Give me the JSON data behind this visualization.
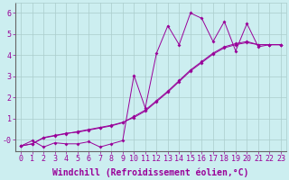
{
  "xlabel": "Windchill (Refroidissement éolien,°C)",
  "background_color": "#cceef0",
  "line_color": "#990099",
  "grid_color": "#aacccc",
  "xlim": [
    -0.5,
    23.5
  ],
  "ylim": [
    -0.55,
    6.5
  ],
  "yticks": [
    0,
    1,
    2,
    3,
    4,
    5,
    6
  ],
  "ytick_labels": [
    "-0",
    "1",
    "2",
    "3",
    "4",
    "5",
    "6"
  ],
  "xticks": [
    0,
    1,
    2,
    3,
    4,
    5,
    6,
    7,
    8,
    9,
    10,
    11,
    12,
    13,
    14,
    15,
    16,
    17,
    18,
    19,
    20,
    21,
    22,
    23
  ],
  "series1_x": [
    0,
    1,
    2,
    3,
    4,
    5,
    6,
    7,
    8,
    9,
    10,
    11,
    12,
    13,
    14,
    15,
    16,
    17,
    18,
    19,
    20,
    21,
    22,
    23
  ],
  "series1_y": [
    -0.3,
    -0.2,
    0.1,
    0.2,
    0.3,
    0.35,
    0.45,
    0.55,
    0.65,
    0.8,
    1.1,
    1.4,
    1.85,
    2.3,
    2.8,
    3.3,
    3.7,
    4.1,
    4.4,
    4.55,
    4.65,
    4.5,
    4.5,
    4.5
  ],
  "series2_x": [
    0,
    1,
    2,
    3,
    4,
    5,
    6,
    7,
    8,
    9,
    10,
    11,
    12,
    13,
    14,
    15,
    16,
    17,
    18,
    19,
    20,
    21,
    22,
    23
  ],
  "series2_y": [
    -0.3,
    -0.2,
    0.08,
    0.18,
    0.28,
    0.38,
    0.48,
    0.58,
    0.68,
    0.82,
    1.05,
    1.35,
    1.8,
    2.25,
    2.75,
    3.25,
    3.65,
    4.05,
    4.35,
    4.5,
    4.6,
    4.5,
    4.5,
    4.5
  ],
  "series3_x": [
    0,
    1,
    2,
    3,
    4,
    5,
    6,
    7,
    8,
    9,
    10,
    11,
    12,
    13,
    14,
    15,
    16,
    17,
    18,
    19,
    20,
    21,
    22,
    23
  ],
  "series3_y": [
    -0.3,
    -0.05,
    -0.35,
    -0.15,
    -0.2,
    -0.2,
    -0.1,
    -0.35,
    -0.2,
    -0.05,
    3.05,
    1.5,
    4.1,
    5.4,
    4.5,
    6.0,
    5.75,
    4.65,
    5.6,
    4.2,
    5.5,
    4.4,
    4.5,
    4.5
  ],
  "fontsize_label": 7,
  "fontsize_tick": 6,
  "marker": "D",
  "markersize": 2.0,
  "linewidth": 0.7
}
